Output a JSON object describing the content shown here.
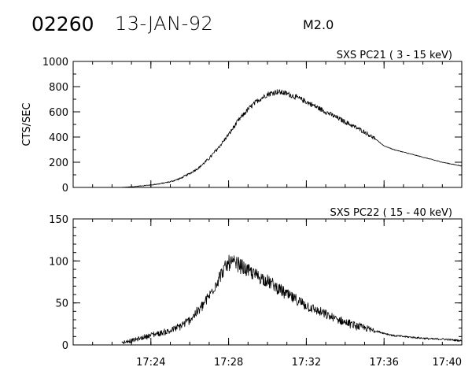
{
  "header": {
    "event_id": "02260",
    "date": "13-JAN-92",
    "flare_class": "M2.0"
  },
  "colors": {
    "background": "#ffffff",
    "ink": "#000000"
  },
  "chart_data": [
    {
      "type": "line",
      "title": "SXS PC21  (  3 - 15 keV)",
      "ylabel": "CTS/SEC",
      "xlabel": "",
      "x_unit": "UT time (minutes after 17:20)",
      "xlim": [
        0,
        20
      ],
      "ylim": [
        0,
        1000
      ],
      "yticks": [
        0,
        200,
        400,
        600,
        800,
        1000
      ],
      "yticklabels": [
        "0",
        "200",
        "400",
        "600",
        "800",
        "1000"
      ],
      "xticks": [
        4,
        8,
        12,
        16,
        20
      ],
      "xticklabels": [],
      "x_minor_step": 1,
      "y_minor_step": 100,
      "grid": false,
      "noise_amplitude": 22,
      "noise_end_x": 15.5,
      "series": [
        {
          "x": [
            2.5,
            3.0,
            3.5,
            4.0,
            4.5,
            5.0,
            5.5,
            6.0,
            6.5,
            7.0,
            7.5,
            8.0,
            8.5,
            9.0,
            9.5,
            10.0,
            10.5,
            11.0,
            11.5,
            12.0,
            12.5,
            13.0,
            13.5,
            14.0,
            14.5,
            15.0,
            15.5,
            16.0,
            16.5,
            17.0,
            17.5,
            18.0,
            18.5,
            19.0,
            19.5,
            20.0
          ],
          "y": [
            0,
            5,
            12,
            20,
            30,
            45,
            70,
            110,
            160,
            230,
            320,
            420,
            530,
            620,
            690,
            740,
            760,
            745,
            715,
            680,
            640,
            600,
            560,
            520,
            480,
            440,
            390,
            330,
            300,
            280,
            260,
            240,
            220,
            200,
            185,
            170
          ]
        }
      ]
    },
    {
      "type": "line",
      "title": "SXS PC22  ( 15 - 40 keV)",
      "ylabel": "",
      "xlabel": "",
      "x_unit": "UT time (minutes after 17:20)",
      "xlim": [
        0,
        20
      ],
      "ylim": [
        0,
        150
      ],
      "yticks": [
        0,
        50,
        100,
        150
      ],
      "yticklabels": [
        "0",
        "50",
        "100",
        "150"
      ],
      "xticks": [
        4,
        8,
        12,
        16,
        20
      ],
      "xticklabels": [
        "17:24",
        "17:28",
        "17:32",
        "17:36",
        "17:40"
      ],
      "x_minor_step": 1,
      "y_minor_step": 10,
      "grid": false,
      "noise_amplitude": 9,
      "noise_end_x": 15.5,
      "series": [
        {
          "x": [
            2.5,
            3.0,
            3.5,
            4.0,
            4.5,
            5.0,
            5.5,
            6.0,
            6.5,
            7.0,
            7.5,
            8.0,
            8.5,
            9.0,
            9.5,
            10.0,
            10.5,
            11.0,
            11.5,
            12.0,
            12.5,
            13.0,
            13.5,
            14.0,
            14.5,
            15.0,
            15.5,
            16.0,
            16.5,
            17.0,
            17.5,
            18.0,
            18.5,
            19.0,
            19.5,
            20.0
          ],
          "y": [
            3,
            5,
            8,
            12,
            14,
            17,
            22,
            30,
            42,
            58,
            80,
            98,
            96,
            88,
            82,
            76,
            68,
            60,
            53,
            47,
            41,
            36,
            31,
            27,
            23,
            20,
            17,
            14,
            11,
            10,
            9,
            8,
            7,
            7,
            6,
            5
          ]
        }
      ]
    }
  ]
}
